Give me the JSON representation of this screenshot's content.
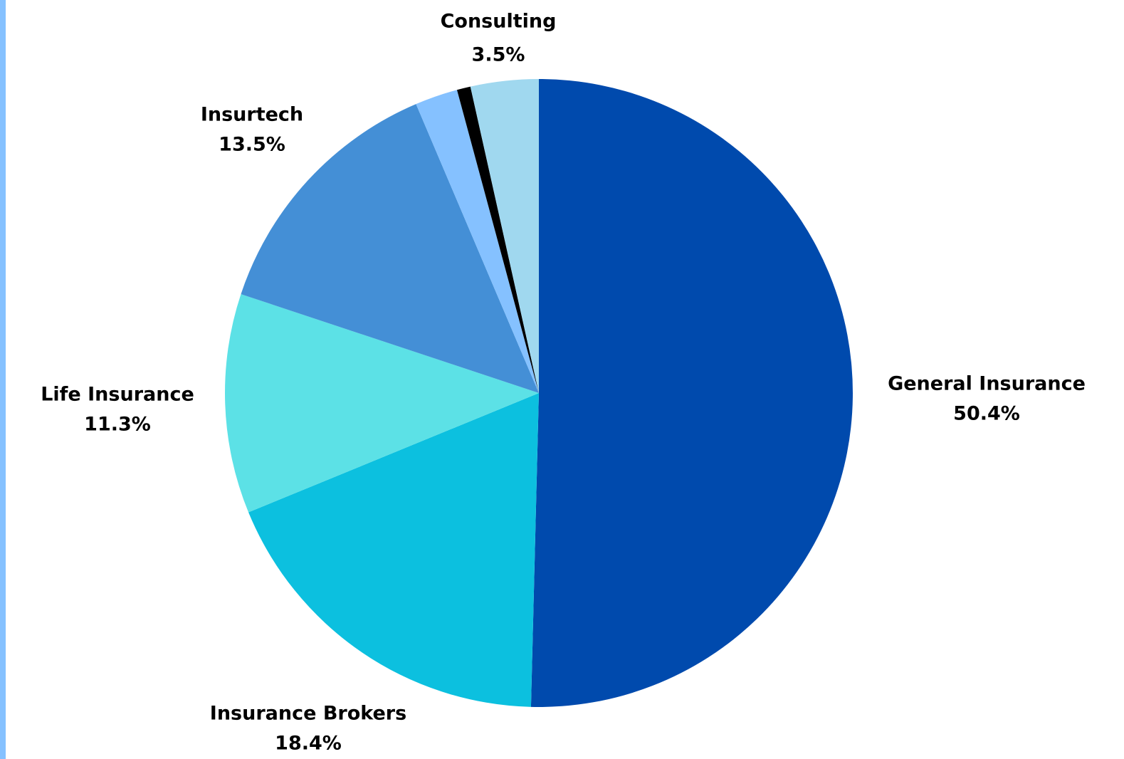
{
  "chart_data": {
    "type": "pie",
    "categories": [
      "General Insurance",
      "Insurance Brokers",
      "Life Insurance",
      "Insurtech",
      null,
      null,
      "Consulting"
    ],
    "values": [
      50.4,
      18.4,
      11.3,
      13.5,
      2.2,
      0.7,
      3.5
    ],
    "value_labels": [
      "50.4%",
      "18.4%",
      "11.3%",
      "13.5%",
      null,
      null,
      "3.5%"
    ],
    "colors": [
      "#004aad",
      "#0cc0df",
      "#5ce1e6",
      "#448fd6",
      "#85c1ff",
      "#000000",
      "#a0d8ef"
    ]
  }
}
